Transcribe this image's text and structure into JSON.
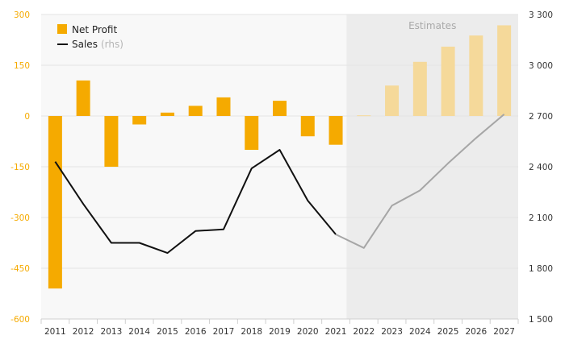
{
  "chart_data": {
    "type": "bar+line",
    "categories": [
      "2011",
      "2012",
      "2013",
      "2014",
      "2015",
      "2016",
      "2017",
      "2018",
      "2019",
      "2020",
      "2021",
      "2022",
      "2023",
      "2024",
      "2025",
      "2026",
      "2027"
    ],
    "estimate_from_index": 11,
    "estimates_label": "Estimates",
    "series": [
      {
        "name": "Net Profit",
        "axis": "left",
        "kind": "bar",
        "values": [
          -510,
          105,
          -150,
          -25,
          10,
          30,
          55,
          -100,
          45,
          -60,
          -85,
          2,
          90,
          160,
          205,
          238,
          268
        ]
      },
      {
        "name": "Sales",
        "name_suffix": "(rhs)",
        "axis": "right",
        "kind": "line",
        "values": [
          2430,
          2180,
          1950,
          1950,
          1890,
          2020,
          2030,
          2390,
          2500,
          2200,
          2000,
          1920,
          2170,
          2260,
          2420,
          2570,
          2710
        ]
      }
    ],
    "left_axis": {
      "min": -600,
      "max": 300,
      "ticks": [
        "300",
        "150",
        "0",
        "-150",
        "-300",
        "-450",
        "-600"
      ]
    },
    "right_axis": {
      "min": 1500,
      "max": 3300,
      "ticks": [
        "3 300",
        "3 000",
        "2 700",
        "2 400",
        "2 100",
        "1 800",
        "1 500"
      ]
    },
    "grid": true,
    "legend_position": "top-left",
    "colors": {
      "bar": "#f5aa00",
      "bar_estimate": "#f5d99a",
      "line": "#111111",
      "line_estimate": "#a6a6a6",
      "left_axis_text": "#f5aa00",
      "right_axis_text": "#333333",
      "plot_bg": "#f8f8f8",
      "estimate_bg": "#ececec",
      "grid": "#e3e3e3"
    }
  }
}
